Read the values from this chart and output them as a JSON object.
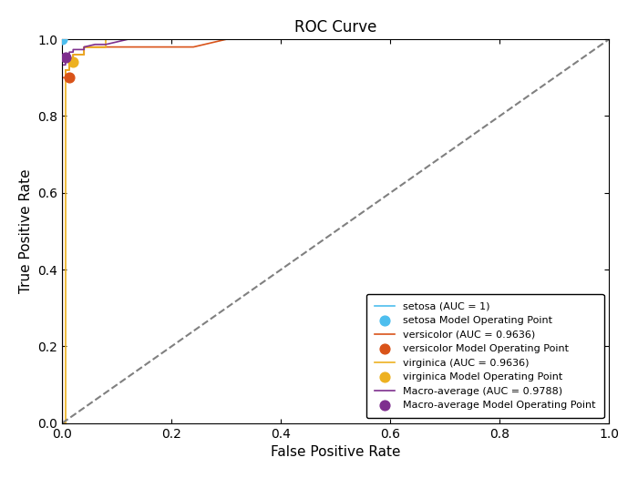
{
  "title": "ROC Curve",
  "xlabel": "False Positive Rate",
  "ylabel": "True Positive Rate",
  "xlim": [
    0,
    1
  ],
  "ylim": [
    0,
    1
  ],
  "background_color": "#ffffff",
  "curves": {
    "setosa": {
      "fpr": [
        0.0,
        0.0,
        1.0
      ],
      "tpr": [
        0.0,
        1.0,
        1.0
      ],
      "color": "#4DBEEE",
      "auc": 1.0,
      "op_fpr": 0.0,
      "op_tpr": 1.0
    },
    "versicolor": {
      "fpr": [
        0.0,
        0.0,
        0.006,
        0.006,
        0.013,
        0.013,
        0.02,
        0.02,
        0.04,
        0.04,
        0.06,
        0.06,
        0.08,
        0.1,
        0.12,
        0.14,
        0.16,
        0.18,
        0.2,
        0.22,
        0.24,
        0.3,
        1.0
      ],
      "tpr": [
        0.0,
        0.9,
        0.9,
        0.92,
        0.92,
        0.94,
        0.94,
        0.96,
        0.96,
        0.98,
        0.98,
        0.98,
        0.98,
        0.98,
        0.98,
        0.98,
        0.98,
        0.98,
        0.98,
        0.98,
        0.98,
        1.0,
        1.0
      ],
      "color": "#D95319",
      "auc": 0.9636,
      "op_fpr": 0.013,
      "op_tpr": 0.9
    },
    "virginica": {
      "fpr": [
        0.0,
        0.0,
        0.0,
        0.006,
        0.006,
        0.013,
        0.013,
        0.02,
        0.02,
        0.04,
        0.04,
        0.06,
        0.06,
        0.08,
        0.08,
        0.12,
        1.0
      ],
      "tpr": [
        0.0,
        0.0,
        0.0,
        0.0,
        0.92,
        0.92,
        0.94,
        0.94,
        0.96,
        0.96,
        0.98,
        0.98,
        0.98,
        0.98,
        1.0,
        1.0,
        1.0
      ],
      "color": "#EDB120",
      "auc": 0.9636,
      "op_fpr": 0.02,
      "op_tpr": 0.94
    },
    "macro": {
      "fpr": [
        0.0,
        0.0,
        0.002,
        0.004,
        0.006,
        0.006,
        0.01,
        0.013,
        0.013,
        0.02,
        0.02,
        0.04,
        0.04,
        0.06,
        0.08,
        0.1,
        0.12,
        0.14,
        0.16,
        0.3,
        1.0
      ],
      "tpr": [
        0.0,
        0.9333,
        0.9333,
        0.9333,
        0.9333,
        0.9533,
        0.9533,
        0.9533,
        0.9667,
        0.9667,
        0.9733,
        0.9733,
        0.98,
        0.9867,
        0.9867,
        0.9933,
        1.0,
        1.0,
        1.0,
        1.0,
        1.0
      ],
      "color": "#7E2F8E",
      "auc": 0.9788,
      "op_fpr": 0.006,
      "op_tpr": 0.9533
    }
  },
  "diagonal": {
    "color": "#808080",
    "linestyle": "--",
    "linewidth": 1.5
  },
  "legend_loc": "lower right",
  "title_fontsize": 12,
  "label_fontsize": 11,
  "tick_fontsize": 10,
  "figsize": [
    7.0,
    5.25
  ],
  "dpi": 100
}
